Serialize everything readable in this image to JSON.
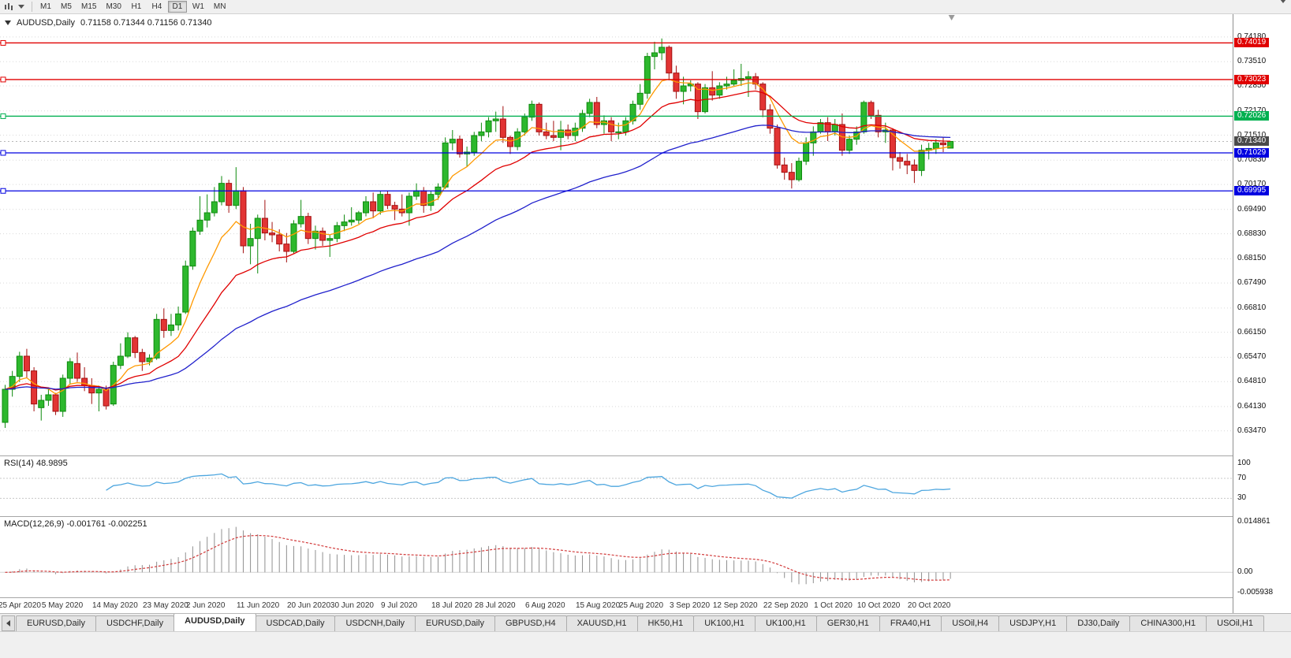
{
  "toolbar": {
    "icons": [
      {
        "name": "chart-candlestick-icon"
      },
      {
        "name": "dropdown-caret-icon"
      },
      {
        "name": "toolbar-overflow-icon"
      }
    ],
    "timeframes": [
      {
        "label": "M1",
        "active": false
      },
      {
        "label": "M5",
        "active": false
      },
      {
        "label": "M15",
        "active": false
      },
      {
        "label": "M30",
        "active": false
      },
      {
        "label": "H1",
        "active": false
      },
      {
        "label": "H4",
        "active": false
      },
      {
        "label": "D1",
        "active": true
      },
      {
        "label": "W1",
        "active": false
      },
      {
        "label": "MN",
        "active": false
      }
    ]
  },
  "chart": {
    "symbol_label": "AUDUSD,Daily",
    "ohlc_text": "0.71158 0.71344 0.71156 0.71340",
    "open": "0.71158",
    "high": "0.71344",
    "low": "0.71156",
    "close": "0.71340",
    "current_price_label": "0.71340",
    "price_axis": [
      "0.74180",
      "0.73510",
      "0.72850",
      "0.72170",
      "0.71510",
      "0.70830",
      "0.70170",
      "0.69490",
      "0.68830",
      "0.68150",
      "0.67490",
      "0.66810",
      "0.66150",
      "0.65470",
      "0.64810",
      "0.64130",
      "0.63470"
    ],
    "hlines": [
      {
        "price": 0.74019,
        "label": "0.74019",
        "color": "#E00000"
      },
      {
        "price": 0.73023,
        "label": "0.73023",
        "color": "#E00000"
      },
      {
        "price": 0.72026,
        "label": "0.72026",
        "color": "#00B050"
      },
      {
        "price": 0.71029,
        "label": "0.71029",
        "color": "#0000E0"
      },
      {
        "price": 0.69995,
        "label": "0.69995",
        "color": "#0000E0"
      }
    ]
  },
  "rsi": {
    "label": "RSI(14) 48.9895",
    "value": "48.9895",
    "levels": [
      "100",
      "70",
      "30"
    ]
  },
  "macd": {
    "label": "MACD(12,26,9) -0.001761 -0.002251",
    "values": [
      "-0.001761",
      "-0.002251"
    ],
    "axis": [
      "0.014861",
      "0.00",
      "-0.005938"
    ],
    "max": 0.014861,
    "min": -0.005938
  },
  "time_axis": {
    "labels": [
      {
        "i": 0,
        "t": "25 Apr 2020"
      },
      {
        "i": 6,
        "t": "5 May 2020"
      },
      {
        "i": 13,
        "t": "14 May 2020"
      },
      {
        "i": 20,
        "t": "23 May 2020"
      },
      {
        "i": 26,
        "t": "2 Jun 2020"
      },
      {
        "i": 33,
        "t": "11 Jun 2020"
      },
      {
        "i": 40,
        "t": "20 Jun 2020"
      },
      {
        "i": 46,
        "t": "30 Jun 2020"
      },
      {
        "i": 53,
        "t": "9 Jul 2020"
      },
      {
        "i": 60,
        "t": "18 Jul 2020"
      },
      {
        "i": 66,
        "t": "28 Jul 2020"
      },
      {
        "i": 73,
        "t": "6 Aug 2020"
      },
      {
        "i": 80,
        "t": "15 Aug 2020"
      },
      {
        "i": 86,
        "t": "25 Aug 2020"
      },
      {
        "i": 93,
        "t": "3 Sep 2020"
      },
      {
        "i": 99,
        "t": "12 Sep 2020"
      },
      {
        "i": 106,
        "t": "22 Sep 2020"
      },
      {
        "i": 113,
        "t": "1 Oct 2020"
      },
      {
        "i": 119,
        "t": "10 Oct 2020"
      },
      {
        "i": 126,
        "t": "20 Oct 2020"
      }
    ]
  },
  "tabs": [
    {
      "label": "EURUSD,Daily",
      "active": false
    },
    {
      "label": "USDCHF,Daily",
      "active": false
    },
    {
      "label": "AUDUSD,Daily",
      "active": true
    },
    {
      "label": "USDCAD,Daily",
      "active": false
    },
    {
      "label": "USDCNH,Daily",
      "active": false
    },
    {
      "label": "EURUSD,Daily",
      "active": false
    },
    {
      "label": "GBPUSD,H4",
      "active": false
    },
    {
      "label": "XAUUSD,H1",
      "active": false
    },
    {
      "label": "HK50,H1",
      "active": false
    },
    {
      "label": "UK100,H1",
      "active": false
    },
    {
      "label": "UK100,H1",
      "active": false
    },
    {
      "label": "GER30,H1",
      "active": false
    },
    {
      "label": "FRA40,H1",
      "active": false
    },
    {
      "label": "USOil,H4",
      "active": false
    },
    {
      "label": "USDJPY,H1",
      "active": false
    },
    {
      "label": "DJ30,Daily",
      "active": false
    },
    {
      "label": "CHINA300,H1",
      "active": false
    },
    {
      "label": "USOil,H1",
      "active": false
    }
  ],
  "palette": {
    "bull": "#2DB82D",
    "bull_border": "#0E8A0E",
    "bear": "#E23434",
    "bear_border": "#A31010",
    "ma_fast": "#FF9900",
    "ma_mid": "#E00000",
    "ma_slow": "#2020CC",
    "rsi_line": "#4DA6DF",
    "rsi_level": "#C8C8C8",
    "macd_hist": "#909090",
    "macd_signal": "#D23B3B",
    "grid": "#D9D9D9",
    "price_tag_bg": "#4A4A4A"
  },
  "chart_data": {
    "type": "candlestick",
    "symbol": "AUDUSD",
    "timeframe": "Daily",
    "ylim": [
      0.628,
      0.748
    ],
    "candles": [
      [
        0.637,
        0.6472,
        0.6355,
        0.646
      ],
      [
        0.646,
        0.651,
        0.644,
        0.6495
      ],
      [
        0.6495,
        0.6562,
        0.648,
        0.655
      ],
      [
        0.655,
        0.657,
        0.649,
        0.651
      ],
      [
        0.651,
        0.652,
        0.64,
        0.642
      ],
      [
        0.641,
        0.6445,
        0.6375,
        0.643
      ],
      [
        0.643,
        0.6465,
        0.6415,
        0.6445
      ],
      [
        0.6445,
        0.645,
        0.639,
        0.64
      ],
      [
        0.64,
        0.65,
        0.6385,
        0.649
      ],
      [
        0.649,
        0.6545,
        0.6475,
        0.6535
      ],
      [
        0.653,
        0.656,
        0.648,
        0.649
      ],
      [
        0.649,
        0.652,
        0.6455,
        0.647
      ],
      [
        0.647,
        0.649,
        0.642,
        0.645
      ],
      [
        0.645,
        0.647,
        0.64,
        0.646
      ],
      [
        0.646,
        0.647,
        0.6405,
        0.6415
      ],
      [
        0.642,
        0.6535,
        0.6415,
        0.6525
      ],
      [
        0.6525,
        0.6585,
        0.6515,
        0.655
      ],
      [
        0.655,
        0.6615,
        0.6545,
        0.66
      ],
      [
        0.66,
        0.6605,
        0.6545,
        0.656
      ],
      [
        0.656,
        0.657,
        0.651,
        0.6535
      ],
      [
        0.6535,
        0.6555,
        0.6525,
        0.6545
      ],
      [
        0.6545,
        0.6665,
        0.654,
        0.665
      ],
      [
        0.665,
        0.668,
        0.66,
        0.662
      ],
      [
        0.662,
        0.6665,
        0.6605,
        0.6635
      ],
      [
        0.6635,
        0.6685,
        0.662,
        0.6665
      ],
      [
        0.667,
        0.681,
        0.6665,
        0.6795
      ],
      [
        0.6795,
        0.69,
        0.6785,
        0.689
      ],
      [
        0.689,
        0.6985,
        0.688,
        0.692
      ],
      [
        0.692,
        0.699,
        0.69,
        0.694
      ],
      [
        0.694,
        0.701,
        0.693,
        0.697
      ],
      [
        0.697,
        0.704,
        0.696,
        0.702
      ],
      [
        0.702,
        0.703,
        0.694,
        0.696
      ],
      [
        0.696,
        0.7064,
        0.695,
        0.7
      ],
      [
        0.7,
        0.701,
        0.683,
        0.685
      ],
      [
        0.685,
        0.691,
        0.68,
        0.687
      ],
      [
        0.687,
        0.6935,
        0.6775,
        0.6925
      ],
      [
        0.6925,
        0.6975,
        0.6865,
        0.6885
      ],
      [
        0.6885,
        0.6915,
        0.686,
        0.688
      ],
      [
        0.688,
        0.6895,
        0.6835,
        0.6855
      ],
      [
        0.6855,
        0.6885,
        0.6805,
        0.6835
      ],
      [
        0.6835,
        0.692,
        0.683,
        0.691
      ],
      [
        0.691,
        0.6975,
        0.69,
        0.693
      ],
      [
        0.693,
        0.694,
        0.6855,
        0.687
      ],
      [
        0.687,
        0.6905,
        0.684,
        0.689
      ],
      [
        0.689,
        0.69,
        0.685,
        0.6865
      ],
      [
        0.6865,
        0.688,
        0.682,
        0.687
      ],
      [
        0.687,
        0.6915,
        0.686,
        0.6905
      ],
      [
        0.6905,
        0.6935,
        0.689,
        0.6915
      ],
      [
        0.6915,
        0.6955,
        0.6905,
        0.692
      ],
      [
        0.692,
        0.6945,
        0.691,
        0.694
      ],
      [
        0.694,
        0.6985,
        0.693,
        0.697
      ],
      [
        0.697,
        0.6995,
        0.6925,
        0.6945
      ],
      [
        0.6945,
        0.7,
        0.6935,
        0.699
      ],
      [
        0.699,
        0.7,
        0.695,
        0.696
      ],
      [
        0.696,
        0.697,
        0.692,
        0.695
      ],
      [
        0.695,
        0.699,
        0.693,
        0.694
      ],
      [
        0.694,
        0.6995,
        0.6905,
        0.6985
      ],
      [
        0.6985,
        0.702,
        0.6975,
        0.7
      ],
      [
        0.7,
        0.701,
        0.694,
        0.696
      ],
      [
        0.696,
        0.7,
        0.6945,
        0.699
      ],
      [
        0.699,
        0.702,
        0.6975,
        0.701
      ],
      [
        0.701,
        0.7145,
        0.7005,
        0.713
      ],
      [
        0.713,
        0.7165,
        0.711,
        0.714
      ],
      [
        0.714,
        0.715,
        0.709,
        0.71
      ],
      [
        0.71,
        0.712,
        0.7065,
        0.7105
      ],
      [
        0.7105,
        0.716,
        0.7095,
        0.715
      ],
      [
        0.715,
        0.7185,
        0.7135,
        0.716
      ],
      [
        0.716,
        0.72,
        0.7145,
        0.719
      ],
      [
        0.719,
        0.7215,
        0.716,
        0.7195
      ],
      [
        0.7195,
        0.723,
        0.713,
        0.7145
      ],
      [
        0.7145,
        0.715,
        0.71,
        0.712
      ],
      [
        0.712,
        0.717,
        0.711,
        0.716
      ],
      [
        0.716,
        0.721,
        0.715,
        0.72
      ],
      [
        0.72,
        0.7245,
        0.719,
        0.7235
      ],
      [
        0.7235,
        0.724,
        0.715,
        0.716
      ],
      [
        0.716,
        0.7185,
        0.714,
        0.715
      ],
      [
        0.715,
        0.719,
        0.7135,
        0.7145
      ],
      [
        0.7145,
        0.719,
        0.711,
        0.7165
      ],
      [
        0.7165,
        0.718,
        0.714,
        0.715
      ],
      [
        0.715,
        0.7185,
        0.7135,
        0.717
      ],
      [
        0.717,
        0.722,
        0.716,
        0.721
      ],
      [
        0.721,
        0.725,
        0.72,
        0.724
      ],
      [
        0.724,
        0.7255,
        0.717,
        0.718
      ],
      [
        0.718,
        0.7205,
        0.7155,
        0.719
      ],
      [
        0.719,
        0.72,
        0.7135,
        0.716
      ],
      [
        0.716,
        0.7185,
        0.714,
        0.716
      ],
      [
        0.716,
        0.72,
        0.715,
        0.719
      ],
      [
        0.719,
        0.7245,
        0.718,
        0.7235
      ],
      [
        0.7235,
        0.729,
        0.722,
        0.7265
      ],
      [
        0.7265,
        0.7375,
        0.725,
        0.7365
      ],
      [
        0.7365,
        0.7405,
        0.733,
        0.7375
      ],
      [
        0.7375,
        0.7414,
        0.7355,
        0.739
      ],
      [
        0.739,
        0.7395,
        0.73,
        0.732
      ],
      [
        0.732,
        0.734,
        0.725,
        0.727
      ],
      [
        0.727,
        0.731,
        0.7235,
        0.7285
      ],
      [
        0.7285,
        0.73,
        0.727,
        0.729
      ],
      [
        0.729,
        0.7295,
        0.7195,
        0.7215
      ],
      [
        0.7215,
        0.729,
        0.721,
        0.728
      ],
      [
        0.728,
        0.7325,
        0.7245,
        0.726
      ],
      [
        0.726,
        0.7295,
        0.725,
        0.7285
      ],
      [
        0.7285,
        0.731,
        0.7275,
        0.729
      ],
      [
        0.729,
        0.733,
        0.7285,
        0.73
      ],
      [
        0.73,
        0.7345,
        0.7285,
        0.7305
      ],
      [
        0.7305,
        0.7325,
        0.7255,
        0.731
      ],
      [
        0.731,
        0.732,
        0.7275,
        0.729
      ],
      [
        0.729,
        0.7295,
        0.72,
        0.722
      ],
      [
        0.722,
        0.7235,
        0.7155,
        0.717
      ],
      [
        0.717,
        0.718,
        0.706,
        0.707
      ],
      [
        0.707,
        0.709,
        0.703,
        0.705
      ],
      [
        0.705,
        0.7075,
        0.7006,
        0.703
      ],
      [
        0.703,
        0.709,
        0.7025,
        0.708
      ],
      [
        0.708,
        0.7145,
        0.707,
        0.713
      ],
      [
        0.713,
        0.7175,
        0.7095,
        0.716
      ],
      [
        0.716,
        0.7195,
        0.7155,
        0.7185
      ],
      [
        0.7185,
        0.72,
        0.7135,
        0.716
      ],
      [
        0.716,
        0.7195,
        0.715,
        0.718
      ],
      [
        0.718,
        0.721,
        0.7095,
        0.711
      ],
      [
        0.711,
        0.715,
        0.71,
        0.714
      ],
      [
        0.714,
        0.7175,
        0.7125,
        0.716
      ],
      [
        0.716,
        0.7245,
        0.7155,
        0.724
      ],
      [
        0.724,
        0.7245,
        0.7195,
        0.7205
      ],
      [
        0.7205,
        0.722,
        0.7145,
        0.716
      ],
      [
        0.716,
        0.7185,
        0.713,
        0.7165
      ],
      [
        0.7165,
        0.717,
        0.7055,
        0.709
      ],
      [
        0.709,
        0.7105,
        0.706,
        0.708
      ],
      [
        0.708,
        0.71,
        0.7045,
        0.707
      ],
      [
        0.707,
        0.7085,
        0.7021,
        0.7055
      ],
      [
        0.7055,
        0.7125,
        0.704,
        0.711
      ],
      [
        0.711,
        0.713,
        0.7085,
        0.7115
      ],
      [
        0.7115,
        0.714,
        0.71,
        0.713
      ],
      [
        0.713,
        0.7145,
        0.7105,
        0.7125
      ],
      [
        0.71158,
        0.71344,
        0.71156,
        0.7134
      ]
    ]
  }
}
